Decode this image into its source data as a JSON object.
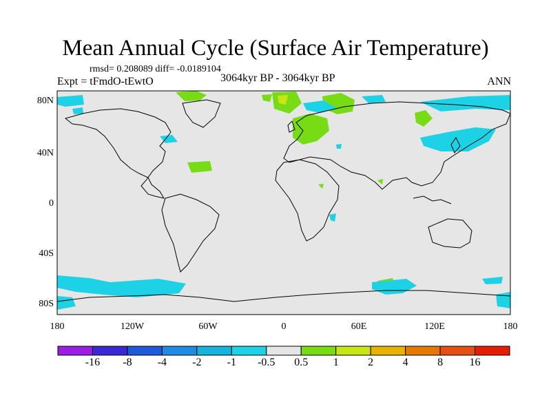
{
  "title": "Mean Annual Cycle (Surface Air Temperature)",
  "stats": "rmsd= 0.208089 diff= -0.0189104",
  "experiment": "Expt = tFmdO-tEwtO",
  "period": "3064kyr BP - 3064kyr BP",
  "season": "ANN",
  "lat_labels": [
    "80N",
    "40N",
    "0",
    "40S",
    "80S"
  ],
  "lon_labels": [
    "180",
    "120W",
    "60W",
    "0",
    "60E",
    "120E",
    "180"
  ],
  "colorbar": {
    "labels": [
      "-16",
      "-8",
      "-4",
      "-2",
      "-1",
      "-0.5",
      "0.5",
      "1",
      "2",
      "4",
      "8",
      "16"
    ],
    "colors": [
      "#9b1ee6",
      "#3c28d2",
      "#1e5adc",
      "#1e8ce6",
      "#14b4dc",
      "#1ed2e6",
      "#e6e6e6",
      "#78dc14",
      "#c8e614",
      "#e6b400",
      "#e67800",
      "#e65014",
      "#e61e00"
    ]
  }
}
